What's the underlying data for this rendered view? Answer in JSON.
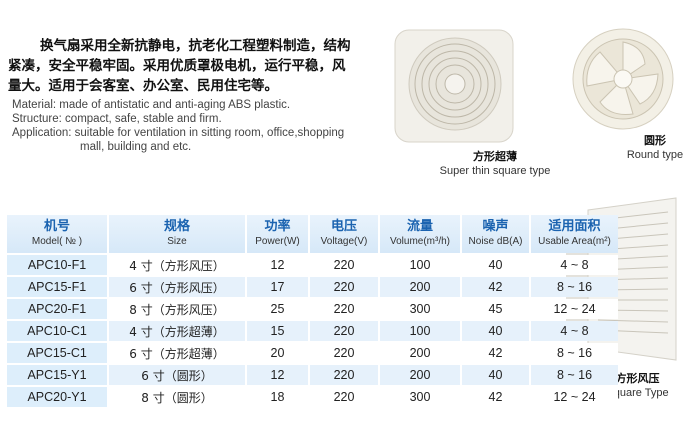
{
  "intro_cn": [
    "换气扇采用全新抗静电，抗老化工程塑料制造，结构",
    "紧凑，安全平稳牢固。采用优质罩极电机，运行平稳，风",
    "量大。适用于会客室、办公室、民用住宅等。"
  ],
  "intro_en": [
    "Material: made of antistatic and anti-aging ABS plastic.",
    "Structure: compact, safe, stable and firm.",
    "Application: suitable for ventilation in sitting room, office,shopping",
    "mall,  building and etc."
  ],
  "products": [
    {
      "cn": "方形超薄",
      "en": "Super thin square type"
    },
    {
      "cn": "圆形",
      "en": "Round type"
    },
    {
      "cn": "方形风压",
      "en": "Square Type"
    }
  ],
  "table": {
    "headers": [
      {
        "cn": "机号",
        "en": "Model( № )"
      },
      {
        "cn": "规格",
        "en": "Size"
      },
      {
        "cn": "功率",
        "en": "Power(W)"
      },
      {
        "cn": "电压",
        "en": "Voltage(V)"
      },
      {
        "cn": "流量",
        "en": "Volume(m³/h)"
      },
      {
        "cn": "噪声",
        "en": "Noise dB(A)"
      },
      {
        "cn": "适用面积",
        "en": "Usable Area(m²)"
      }
    ],
    "rows": [
      [
        "APC10-F1",
        "4 寸（方形风压）",
        "12",
        "220",
        "100",
        "40",
        "4 ~ 8"
      ],
      [
        "APC15-F1",
        "6 寸（方形风压）",
        "17",
        "220",
        "200",
        "42",
        "8 ~ 16"
      ],
      [
        "APC20-F1",
        "8 寸（方形风压）",
        "25",
        "220",
        "300",
        "45",
        "12 ~ 24"
      ],
      [
        "APC10-C1",
        "4 寸（方形超薄）",
        "15",
        "220",
        "100",
        "40",
        "4 ~ 8"
      ],
      [
        "APC15-C1",
        "6 寸（方形超薄）",
        "20",
        "220",
        "200",
        "42",
        "8 ~ 16"
      ],
      [
        "APC15-Y1",
        "6 寸（圆形）",
        "12",
        "220",
        "200",
        "40",
        "8 ~ 16"
      ],
      [
        "APC20-Y1",
        "8 寸（圆形）",
        "18",
        "220",
        "300",
        "42",
        "12 ~ 24"
      ]
    ]
  },
  "colors": {
    "header_text": "#1b63b0",
    "header_bg": "#dcebf9",
    "row_alt": "#e6f1fb"
  }
}
